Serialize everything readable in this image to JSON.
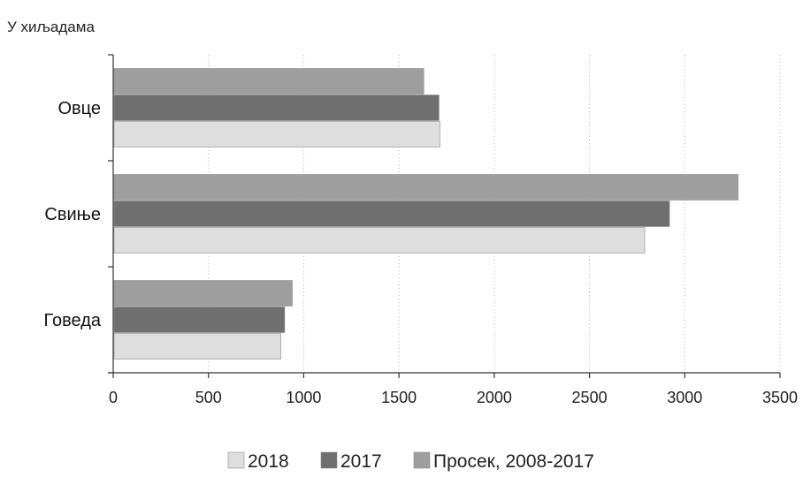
{
  "chart_data": {
    "type": "bar",
    "orientation": "horizontal",
    "unit_label": "У хиљадама",
    "categories": [
      "Овце",
      "Свиње",
      "Говеда"
    ],
    "series": [
      {
        "name": "Просек, 2008-2017",
        "color": "#9e9e9e",
        "values": [
          1630,
          3280,
          940
        ]
      },
      {
        "name": "2017",
        "color": "#6f6f6f",
        "values": [
          1710,
          2920,
          900
        ]
      },
      {
        "name": "2018",
        "color": "#dedede",
        "values": [
          1715,
          2790,
          880
        ]
      }
    ],
    "legend_order": [
      "2018",
      "2017",
      "Просек, 2008-2017"
    ],
    "legend_position": "bottom",
    "xlim": [
      0,
      3500
    ],
    "x_ticks": [
      "0",
      "500",
      "1000",
      "1500",
      "2000",
      "2500",
      "3000",
      "3500"
    ],
    "grid": "vertical dotted"
  }
}
